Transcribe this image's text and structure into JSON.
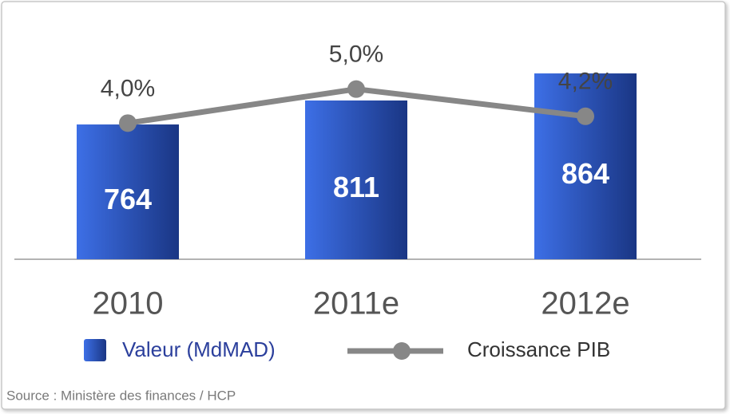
{
  "chart_data": {
    "type": "bar",
    "categories": [
      "2010",
      "2011e",
      "2012e"
    ],
    "series": [
      {
        "name": "Valeur (MdMAD)",
        "type": "bar",
        "color": "#3d6fe6",
        "values": [
          764,
          811,
          864
        ]
      },
      {
        "name": "Croissance PIB",
        "type": "line",
        "axis": "y2",
        "color": "#878787",
        "values": [
          4.0,
          5.0,
          4.2
        ],
        "value_labels": [
          "4,0%",
          "5,0%",
          "4,2%"
        ]
      }
    ],
    "ylim": [
      500,
      1000
    ],
    "y2lim": [
      0,
      7.5
    ],
    "legend": "bottom",
    "source": "Source : Ministère des finances / HCP"
  }
}
